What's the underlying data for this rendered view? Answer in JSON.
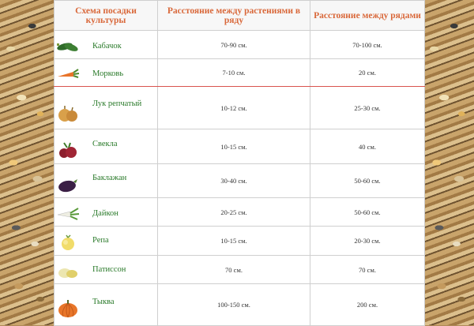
{
  "table": {
    "headers": [
      "Схема посадки культуры",
      "Расстояние между растениями в ряду",
      "Расстояние между рядами"
    ],
    "rows": [
      {
        "name": "Кабачок",
        "icon": "zucchini-icon",
        "in_row": "70-90 см.",
        "between_rows": "70-100 см."
      },
      {
        "name": "Морковь",
        "icon": "carrot-icon",
        "in_row": "7-10 см.",
        "between_rows": "20 см."
      },
      {
        "name": "Лук репчатый",
        "icon": "onion-icon",
        "in_row": "10-12 см.",
        "between_rows": "25-30 см."
      },
      {
        "name": "Свекла",
        "icon": "beet-icon",
        "in_row": "10-15 см.",
        "between_rows": "40 см."
      },
      {
        "name": "Баклажан",
        "icon": "eggplant-icon",
        "in_row": "30-40 см.",
        "between_rows": "50-60 см."
      },
      {
        "name": "Дайкон",
        "icon": "daikon-icon",
        "in_row": "20-25 см.",
        "between_rows": "50-60 см."
      },
      {
        "name": "Репа",
        "icon": "turnip-icon",
        "in_row": "10-15 см.",
        "between_rows": "20-30 см."
      },
      {
        "name": "Патиссон",
        "icon": "pattypan-squash-icon",
        "in_row": "70 см.",
        "between_rows": "70 см."
      },
      {
        "name": "Тыква",
        "icon": "pumpkin-icon",
        "in_row": "100-150 см.",
        "between_rows": "200 см."
      }
    ]
  },
  "colors": {
    "header_text": "#d9683a",
    "crop_name": "#2a7a2a",
    "separator": "#d9534f"
  }
}
